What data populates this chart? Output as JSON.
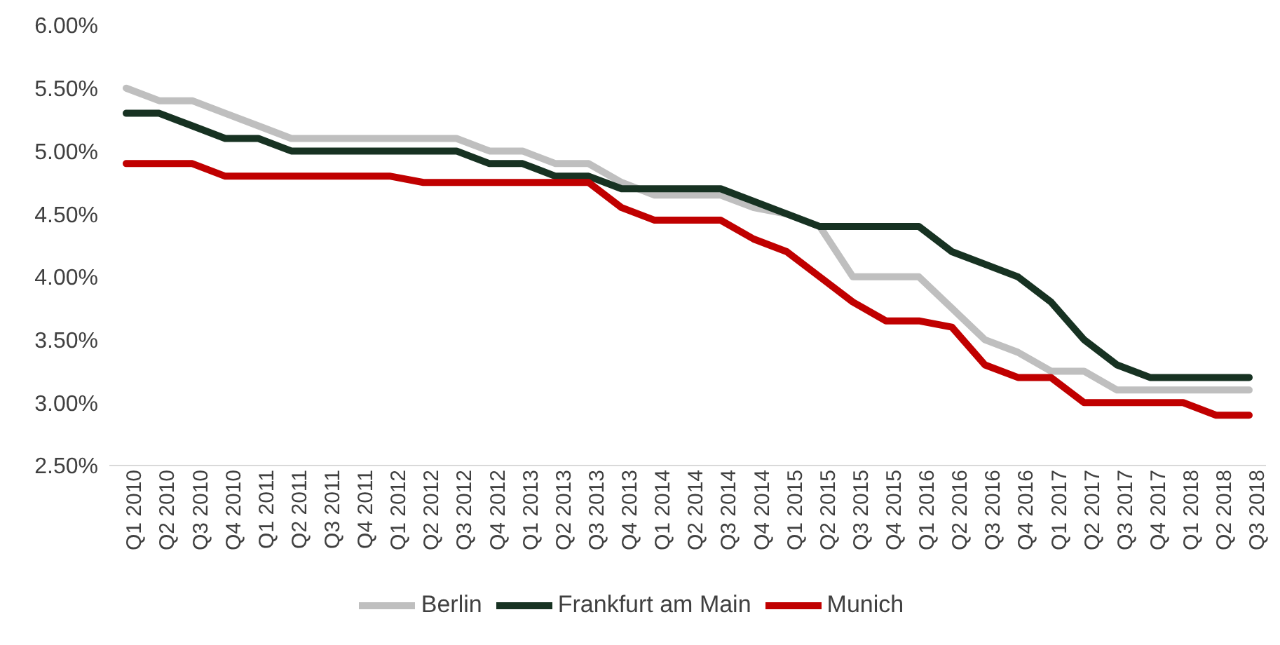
{
  "chart_data": {
    "type": "line",
    "categories": [
      "Q1 2010",
      "Q2 2010",
      "Q3 2010",
      "Q4 2010",
      "Q1 2011",
      "Q2 2011",
      "Q3 2011",
      "Q4 2011",
      "Q1 2012",
      "Q2 2012",
      "Q3 2012",
      "Q4 2012",
      "Q1 2013",
      "Q2 2013",
      "Q3 2013",
      "Q4 2013",
      "Q1 2014",
      "Q2 2014",
      "Q3 2014",
      "Q4 2014",
      "Q1 2015",
      "Q2 2015",
      "Q3 2015",
      "Q4 2015",
      "Q1 2016",
      "Q2 2016",
      "Q3 2016",
      "Q4 2016",
      "Q1 2017",
      "Q2 2017",
      "Q3 2017",
      "Q4 2017",
      "Q1 2018",
      "Q2 2018",
      "Q3 2018"
    ],
    "series": [
      {
        "name": "Berlin",
        "color": "#bfbfbf",
        "values": [
          5.5,
          5.4,
          5.4,
          5.3,
          5.2,
          5.1,
          5.1,
          5.1,
          5.1,
          5.1,
          5.1,
          5.0,
          5.0,
          4.9,
          4.9,
          4.75,
          4.65,
          4.65,
          4.65,
          4.55,
          4.5,
          4.4,
          4.0,
          4.0,
          4.0,
          3.75,
          3.5,
          3.4,
          3.25,
          3.25,
          3.1,
          3.1,
          3.1,
          3.1,
          3.1
        ]
      },
      {
        "name": "Frankfurt am Main",
        "color": "#173222",
        "values": [
          5.3,
          5.3,
          5.2,
          5.1,
          5.1,
          5.0,
          5.0,
          5.0,
          5.0,
          5.0,
          5.0,
          4.9,
          4.9,
          4.8,
          4.8,
          4.7,
          4.7,
          4.7,
          4.7,
          4.6,
          4.5,
          4.4,
          4.4,
          4.4,
          4.4,
          4.2,
          4.1,
          4.0,
          3.8,
          3.5,
          3.3,
          3.2,
          3.2,
          3.2,
          3.2
        ]
      },
      {
        "name": "Munich",
        "color": "#c00000",
        "values": [
          4.9,
          4.9,
          4.9,
          4.8,
          4.8,
          4.8,
          4.8,
          4.8,
          4.8,
          4.75,
          4.75,
          4.75,
          4.75,
          4.75,
          4.75,
          4.55,
          4.45,
          4.45,
          4.45,
          4.3,
          4.2,
          4.0,
          3.8,
          3.65,
          3.65,
          3.6,
          3.3,
          3.2,
          3.2,
          3.0,
          3.0,
          3.0,
          3.0,
          2.9,
          2.9
        ]
      }
    ],
    "ylim": [
      2.5,
      6
    ],
    "yticks": [
      {
        "value": 2.5,
        "label": "2.50%"
      },
      {
        "value": 3,
        "label": "3.00%"
      },
      {
        "value": 3.5,
        "label": "3.50%"
      },
      {
        "value": 4,
        "label": "4.00%"
      },
      {
        "value": 4.5,
        "label": "4.50%"
      },
      {
        "value": 5,
        "label": "5.00%"
      },
      {
        "value": 5.5,
        "label": "5.50%"
      },
      {
        "value": 6,
        "label": "6.00%"
      }
    ],
    "grid": false,
    "legend": "bottom",
    "marker": "none",
    "line_style": "solid"
  }
}
